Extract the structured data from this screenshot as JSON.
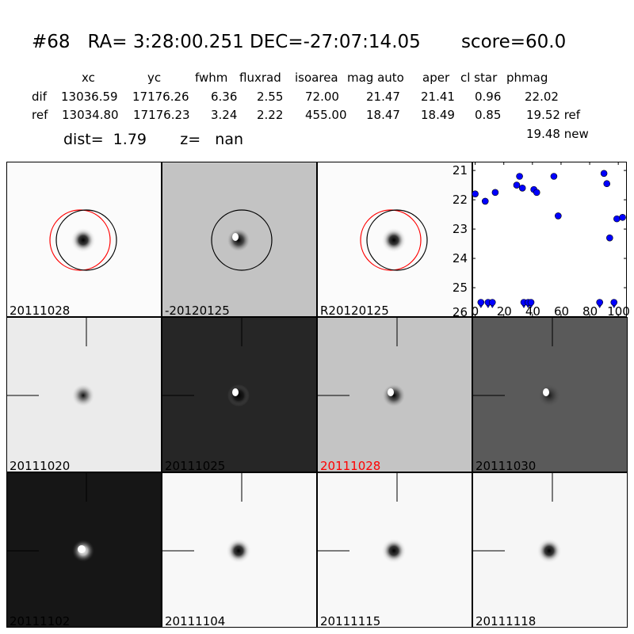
{
  "header": {
    "title": "#68   RA= 3:28:00.251 DEC=-27:07:14.05       score=60.0",
    "col_headers": [
      "xc",
      "yc",
      "fwhm",
      "fluxrad",
      "isoarea",
      "mag auto",
      "aper",
      "cl star",
      "phmag"
    ],
    "dif_label": "dif",
    "dif_values": [
      "13036.59",
      "17176.26",
      "6.36",
      "2.55",
      "72.00",
      "21.47",
      "21.41",
      "0.96",
      "22.02"
    ],
    "ref_label": "ref",
    "ref_values": [
      "13034.80",
      "17176.23",
      "3.24",
      "2.22",
      "455.00",
      "18.47",
      "18.49",
      "0.85",
      "19.52 ref"
    ],
    "new_value": "19.48 new",
    "dist_line": "dist=  1.79       z=   nan"
  },
  "stamps": [
    {
      "label": "20111028",
      "bg": "#fbfbfb",
      "star": "dark",
      "circles": [
        "red",
        "black"
      ],
      "cross": false,
      "label_color": "#000000"
    },
    {
      "label": "-20120125",
      "bg": "#c3c3c3",
      "star": "dipole",
      "circles": [
        "black"
      ],
      "cross": false,
      "label_color": "#000000"
    },
    {
      "label": "R20120125",
      "bg": "#fbfbfb",
      "star": "dark",
      "circles": [
        "red",
        "black"
      ],
      "cross": false,
      "label_color": "#000000"
    },
    {
      "label": "20111020",
      "bg": "#ebebeb",
      "star": "dark-faint",
      "circles": [],
      "cross": true,
      "label_color": "#000000"
    },
    {
      "label": "20111025",
      "bg": "#262626",
      "star": "dipole",
      "circles": [],
      "cross": true,
      "label_color": "#000000"
    },
    {
      "label": "20111028",
      "bg": "#c4c4c4",
      "star": "dipole-gray",
      "circles": [],
      "cross": true,
      "label_color": "#ff0000"
    },
    {
      "label": "20111030",
      "bg": "#5a5a5a",
      "star": "dipole-noisy",
      "circles": [],
      "cross": true,
      "label_color": "#000000"
    },
    {
      "label": "20111102",
      "bg": "#161616",
      "star": "bright",
      "circles": [],
      "cross": true,
      "label_color": "#000000"
    },
    {
      "label": "20111104",
      "bg": "#f8f8f8",
      "star": "dark",
      "circles": [],
      "cross": true,
      "label_color": "#000000"
    },
    {
      "label": "20111115",
      "bg": "#f8f8f8",
      "star": "dark",
      "circles": [],
      "cross": true,
      "label_color": "#000000"
    },
    {
      "label": "20111118",
      "bg": "#f6f6f6",
      "star": "dark",
      "circles": [],
      "cross": true,
      "label_color": "#000000"
    }
  ],
  "chart_data": {
    "type": "scatter",
    "title": "",
    "xlabel": "",
    "ylabel": "",
    "xlim": [
      -2,
      106
    ],
    "ylim": [
      26,
      20.7
    ],
    "inverted_y": true,
    "xticks": [
      0,
      20,
      40,
      60,
      80,
      100
    ],
    "yticks": [
      21,
      22,
      23,
      24,
      25,
      26
    ],
    "marker_color": "#0000ff",
    "series": [
      {
        "points": [
          [
            0,
            21.8
          ],
          [
            7,
            22.05
          ],
          [
            14,
            21.75
          ],
          [
            29,
            21.5
          ],
          [
            31,
            21.2
          ],
          [
            33,
            21.6
          ],
          [
            41,
            21.65
          ],
          [
            43,
            21.75
          ],
          [
            55,
            21.2
          ],
          [
            58,
            22.55
          ],
          [
            90,
            21.1
          ],
          [
            92,
            21.45
          ],
          [
            94,
            23.3
          ],
          [
            99,
            22.65
          ],
          [
            103,
            22.6
          ]
        ]
      },
      {
        "marker": "upper-limit",
        "points": [
          [
            4,
            25.5
          ],
          [
            9,
            25.5
          ],
          [
            12,
            25.5
          ],
          [
            34,
            25.5
          ],
          [
            37,
            25.5
          ],
          [
            39,
            25.5
          ],
          [
            87,
            25.5
          ],
          [
            97,
            25.5
          ]
        ]
      }
    ]
  }
}
